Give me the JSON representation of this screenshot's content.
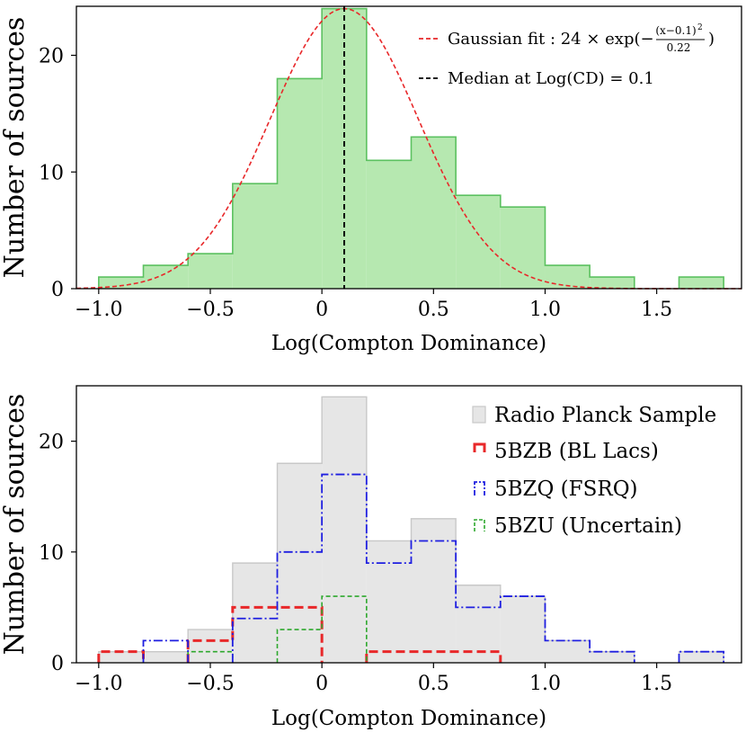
{
  "chart_data": [
    {
      "type": "bar",
      "subtype": "histogram",
      "bin_edges": [
        -1.0,
        -0.8,
        -0.6,
        -0.4,
        -0.2,
        0.0,
        0.2,
        0.4,
        0.6,
        0.8,
        1.0,
        1.2,
        1.4,
        1.6,
        1.8
      ],
      "values": [
        1,
        2,
        3,
        9,
        18,
        24,
        11,
        13,
        8,
        7,
        2,
        1,
        0,
        1
      ],
      "fill_color": "#b6e8b0",
      "edge_color": "#5cc160",
      "xlabel": "Log(Compton Dominance)",
      "ylabel": "Number of sources",
      "xlim": [
        -1.1,
        1.88
      ],
      "ylim": [
        0,
        24.2
      ],
      "xticks": [
        -1.0,
        -0.5,
        0,
        0.5,
        1.0,
        1.5
      ],
      "xtick_labels": [
        "−1.0",
        "−0.5",
        "0",
        "0.5",
        "1.0",
        "1.5"
      ],
      "yticks": [
        0,
        10,
        20
      ],
      "ytick_labels": [
        "0",
        "10",
        "20"
      ],
      "gaussian_fit": {
        "amplitude": 24,
        "mean": 0.1,
        "denominator": 0.22,
        "color": "#e8282a"
      },
      "median": {
        "value": 0.1,
        "color": "#000000"
      },
      "legend": {
        "placement": "top-right",
        "gaussian_prefix": "Gaussian fit : 24 × exp(−",
        "gaussian_numerator": "(x−0.1)",
        "gaussian_exponent": "2",
        "gaussian_denominator": "0.22",
        "gaussian_suffix": ")",
        "median_label": "Median at Log(CD) = 0.1"
      }
    },
    {
      "type": "bar",
      "subtype": "step-histogram",
      "bin_edges": [
        -1.0,
        -0.8,
        -0.6,
        -0.4,
        -0.2,
        0.0,
        0.2,
        0.4,
        0.6,
        0.8,
        1.0,
        1.2,
        1.4,
        1.6,
        1.8
      ],
      "series": [
        {
          "name": "Radio Planck Sample",
          "values": [
            1,
            1,
            3,
            9,
            18,
            24,
            11,
            13,
            7,
            6,
            2,
            1,
            0,
            1
          ],
          "color": "#c8c8c8",
          "style": "filled"
        },
        {
          "name": "5BZB (BL Lacs)",
          "values": [
            1,
            0,
            2,
            5,
            5,
            0,
            1,
            1,
            1,
            0,
            0,
            0,
            0,
            0
          ],
          "color": "#e8282a",
          "style": "dashed"
        },
        {
          "name": "5BZQ (FSRQ)",
          "values": [
            0,
            2,
            0,
            4,
            10,
            17,
            9,
            11,
            5,
            6,
            2,
            1,
            0,
            1
          ],
          "color": "#1f1fe0",
          "style": "dashdot"
        },
        {
          "name": "5BZU (Uncertain)",
          "values": [
            0,
            0,
            1,
            0,
            3,
            6,
            0,
            0,
            0,
            0,
            0,
            0,
            0,
            0
          ],
          "color": "#2ea82e",
          "style": "dashed"
        }
      ],
      "xlabel": "Log(Compton Dominance)",
      "ylabel": "Number of sources",
      "xlim": [
        -1.1,
        1.88
      ],
      "ylim": [
        0,
        25
      ],
      "xticks": [
        -1.0,
        -0.5,
        0,
        0.5,
        1.0,
        1.5
      ],
      "xtick_labels": [
        "−1.0",
        "−0.5",
        "0",
        "0.5",
        "1.0",
        "1.5"
      ],
      "yticks": [
        0,
        10,
        20
      ],
      "ytick_labels": [
        "0",
        "10",
        "20"
      ],
      "legend": {
        "placement": "top-right"
      }
    }
  ]
}
